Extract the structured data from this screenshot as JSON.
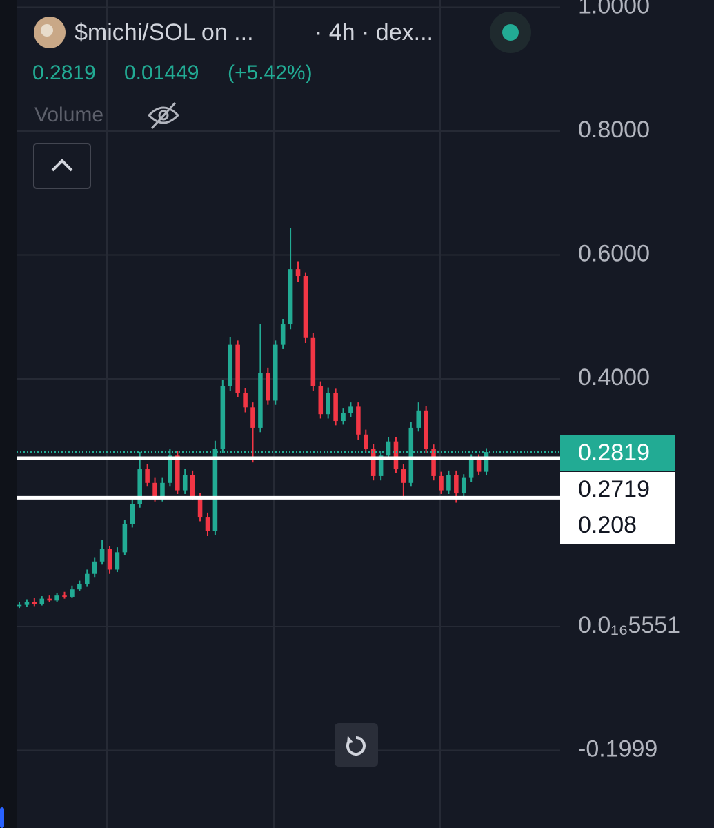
{
  "chart_data": {
    "type": "candlestick",
    "title": "$michi/SOL on ...",
    "interval_label": "· 4h · dex...",
    "last_price": 0.2819,
    "change": 0.01449,
    "change_percent_label": "(+5.42%)",
    "volume_label": "Volume",
    "up_color": "#22ab94",
    "down_color": "#f23645",
    "grid": true,
    "ylim": [
      -0.3253,
      1.0117
    ],
    "yticks": [
      {
        "value": 1,
        "label": "1.0000"
      },
      {
        "value": 0.8,
        "label": "0.8000"
      },
      {
        "value": 0.6,
        "label": "0.6000"
      },
      {
        "value": 0.4,
        "label": "0.4000"
      },
      {
        "value": 5.551e-17,
        "label": "0.0₁₆5551"
      },
      {
        "value": -0.1999,
        "label": "-0.1999"
      }
    ],
    "horizontal_lines": [
      0.2719,
      0.208
    ],
    "open": [
      0.033,
      0.035,
      0.04,
      0.036,
      0.045,
      0.042,
      0.05,
      0.048,
      0.06,
      0.068,
      0.085,
      0.105,
      0.125,
      0.092,
      0.12,
      0.165,
      0.198,
      0.254,
      0.232,
      0.209,
      0.232,
      0.276,
      0.22,
      0.245,
      0.21,
      0.176,
      0.154,
      0.287,
      0.388,
      0.455,
      0.377,
      0.354,
      0.321,
      0.41,
      0.365,
      0.455,
      0.488,
      0.577,
      0.566,
      0.466,
      0.388,
      0.343,
      0.377,
      0.332,
      0.345,
      0.355,
      0.31,
      0.287,
      0.243,
      0.276,
      0.299,
      0.254,
      0.232,
      0.321,
      0.349,
      0.287,
      0.243,
      0.22,
      0.245,
      0.215,
      0.24,
      0.271,
      0.25
    ],
    "high": [
      0.04,
      0.044,
      0.046,
      0.049,
      0.05,
      0.054,
      0.056,
      0.066,
      0.074,
      0.092,
      0.112,
      0.14,
      0.13,
      0.128,
      0.172,
      0.206,
      0.282,
      0.262,
      0.24,
      0.24,
      0.287,
      0.284,
      0.255,
      0.252,
      0.216,
      0.184,
      0.3,
      0.398,
      0.468,
      0.462,
      0.385,
      0.362,
      0.488,
      0.418,
      0.462,
      0.496,
      0.644,
      0.59,
      0.572,
      0.474,
      0.396,
      0.386,
      0.384,
      0.352,
      0.362,
      0.362,
      0.318,
      0.295,
      0.284,
      0.306,
      0.306,
      0.262,
      0.33,
      0.362,
      0.356,
      0.294,
      0.25,
      0.252,
      0.252,
      0.246,
      0.278,
      0.278,
      0.288
    ],
    "low": [
      0.03,
      0.032,
      0.033,
      0.034,
      0.04,
      0.04,
      0.045,
      0.046,
      0.058,
      0.064,
      0.08,
      0.1,
      0.085,
      0.088,
      0.115,
      0.16,
      0.192,
      0.226,
      0.202,
      0.202,
      0.226,
      0.214,
      0.214,
      0.204,
      0.17,
      0.146,
      0.148,
      0.28,
      0.38,
      0.37,
      0.346,
      0.265,
      0.314,
      0.358,
      0.358,
      0.448,
      0.48,
      0.556,
      0.458,
      0.38,
      0.336,
      0.336,
      0.325,
      0.326,
      0.338,
      0.302,
      0.28,
      0.236,
      0.236,
      0.27,
      0.248,
      0.205,
      0.226,
      0.315,
      0.28,
      0.236,
      0.214,
      0.214,
      0.2,
      0.208,
      0.234,
      0.244,
      0.244
    ],
    "close": [
      0.035,
      0.04,
      0.036,
      0.045,
      0.042,
      0.05,
      0.048,
      0.06,
      0.068,
      0.085,
      0.105,
      0.125,
      0.092,
      0.12,
      0.165,
      0.198,
      0.254,
      0.232,
      0.209,
      0.232,
      0.276,
      0.22,
      0.245,
      0.21,
      0.176,
      0.154,
      0.287,
      0.388,
      0.455,
      0.377,
      0.354,
      0.321,
      0.41,
      0.365,
      0.455,
      0.488,
      0.577,
      0.566,
      0.466,
      0.388,
      0.343,
      0.377,
      0.332,
      0.345,
      0.355,
      0.31,
      0.287,
      0.243,
      0.276,
      0.299,
      0.254,
      0.232,
      0.321,
      0.349,
      0.287,
      0.243,
      0.22,
      0.245,
      0.215,
      0.24,
      0.271,
      0.25,
      0.2819
    ]
  }
}
